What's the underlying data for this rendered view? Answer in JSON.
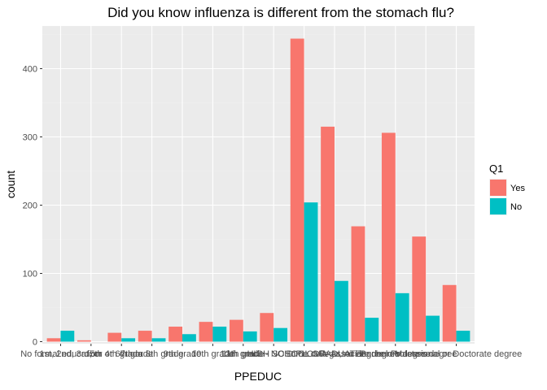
{
  "chart_data": {
    "type": "bar",
    "title": "Did you know influenza is different from the stomach flu?",
    "xlabel": "PPEDUC",
    "ylabel": "count",
    "ylim": [
      0,
      470
    ],
    "yticks": [
      0,
      100,
      200,
      300,
      400
    ],
    "grid": true,
    "legend": {
      "title": "Q1",
      "position": "right"
    },
    "categories": [
      "No formal education",
      "1st, 2nd, 3rd, or 4th grade",
      "5th or 6th grade",
      "7th or 8th grade",
      "9th grade",
      "10th grade",
      "11th grade",
      "12th grade - NO DIPLOMA",
      "HIGH SCHOOL GRADUATE",
      "Some college, no degree",
      "Associate degree",
      "Bachelors degree",
      "Masters degree",
      "Professional or Doctorate degree"
    ],
    "series": [
      {
        "name": "Yes",
        "color": "#F8766D",
        "values": [
          5,
          2,
          13,
          16,
          22,
          29,
          32,
          42,
          444,
          315,
          169,
          306,
          154,
          83
        ]
      },
      {
        "name": "No",
        "color": "#00BFC4",
        "values": [
          16,
          0,
          5,
          5,
          11,
          22,
          15,
          20,
          204,
          89,
          35,
          71,
          38,
          16
        ]
      }
    ]
  },
  "colors": {
    "panel": "#EBEBEB",
    "grid_major": "#FFFFFF",
    "grid_minor": "#F2F2F2"
  }
}
